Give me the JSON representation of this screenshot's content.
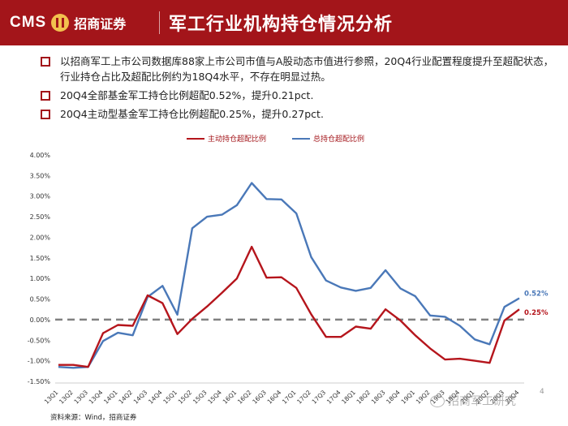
{
  "header": {
    "logo_text": "CMS",
    "logo_cn": "招商证券",
    "title": "军工行业机构持仓情况分析"
  },
  "bullets": [
    "以招商军工上市公司数据库88家上市公司市值与A股动态市值进行参照，20Q4行业配置程度提升至超配状态，行业持仓占比及超配比例约为18Q4水平，不存在明显过热。",
    "20Q4全部基金军工持仓比例超配0.52%，提升0.21pct.",
    "20Q4主动型基金军工持仓比例超配0.25%，提升0.27pct."
  ],
  "colors": {
    "brand": "#a3151a",
    "series_active": "#b5151c",
    "series_total": "#4a78b8",
    "zero_line": "#808080"
  },
  "chart_data": {
    "type": "line",
    "categories": [
      "13Q1",
      "13Q2",
      "13Q3",
      "13Q4",
      "14Q1",
      "14Q2",
      "14Q3",
      "14Q4",
      "15Q1",
      "15Q2",
      "15Q3",
      "15Q4",
      "16Q1",
      "16Q2",
      "16Q3",
      "16Q4",
      "17Q1",
      "17Q2",
      "17Q3",
      "17Q4",
      "18Q1",
      "18Q2",
      "18Q3",
      "18Q4",
      "19Q1",
      "19Q2",
      "19Q3",
      "19Q4",
      "20Q1",
      "20Q2",
      "20Q3",
      "20Q4"
    ],
    "series": [
      {
        "name": "主动持仓超配比例",
        "values": [
          -1.1,
          -1.1,
          -1.15,
          -0.33,
          -0.13,
          -0.15,
          0.59,
          0.4,
          -0.35,
          0.02,
          0.32,
          0.65,
          1.0,
          1.77,
          1.02,
          1.03,
          0.77,
          0.13,
          -0.42,
          -0.42,
          -0.17,
          -0.22,
          0.25,
          -0.02,
          -0.38,
          -0.7,
          -0.97,
          -0.95,
          -1.0,
          -1.05,
          -0.02,
          0.25
        ]
      },
      {
        "name": "总持仓超配比例",
        "values": [
          -1.15,
          -1.17,
          -1.15,
          -0.52,
          -0.32,
          -0.38,
          0.55,
          0.82,
          0.12,
          2.22,
          2.5,
          2.55,
          2.78,
          3.32,
          2.93,
          2.92,
          2.58,
          1.52,
          0.95,
          0.78,
          0.7,
          0.77,
          1.2,
          0.76,
          0.57,
          0.1,
          0.07,
          -0.15,
          -0.48,
          -0.6,
          0.31,
          0.52
        ]
      }
    ],
    "yticks": [
      "-1.50%",
      "-1.00%",
      "-0.50%",
      "0.00%",
      "0.50%",
      "1.00%",
      "1.50%",
      "2.00%",
      "2.50%",
      "3.00%",
      "3.50%",
      "4.00%"
    ],
    "ylim": [
      -1.5,
      4.0
    ],
    "end_labels": [
      "0.52%",
      "0.25%"
    ]
  },
  "footer": {
    "source": "资料来源：Wind，招商证券",
    "page": "4",
    "watermark": "招商军工研究"
  }
}
